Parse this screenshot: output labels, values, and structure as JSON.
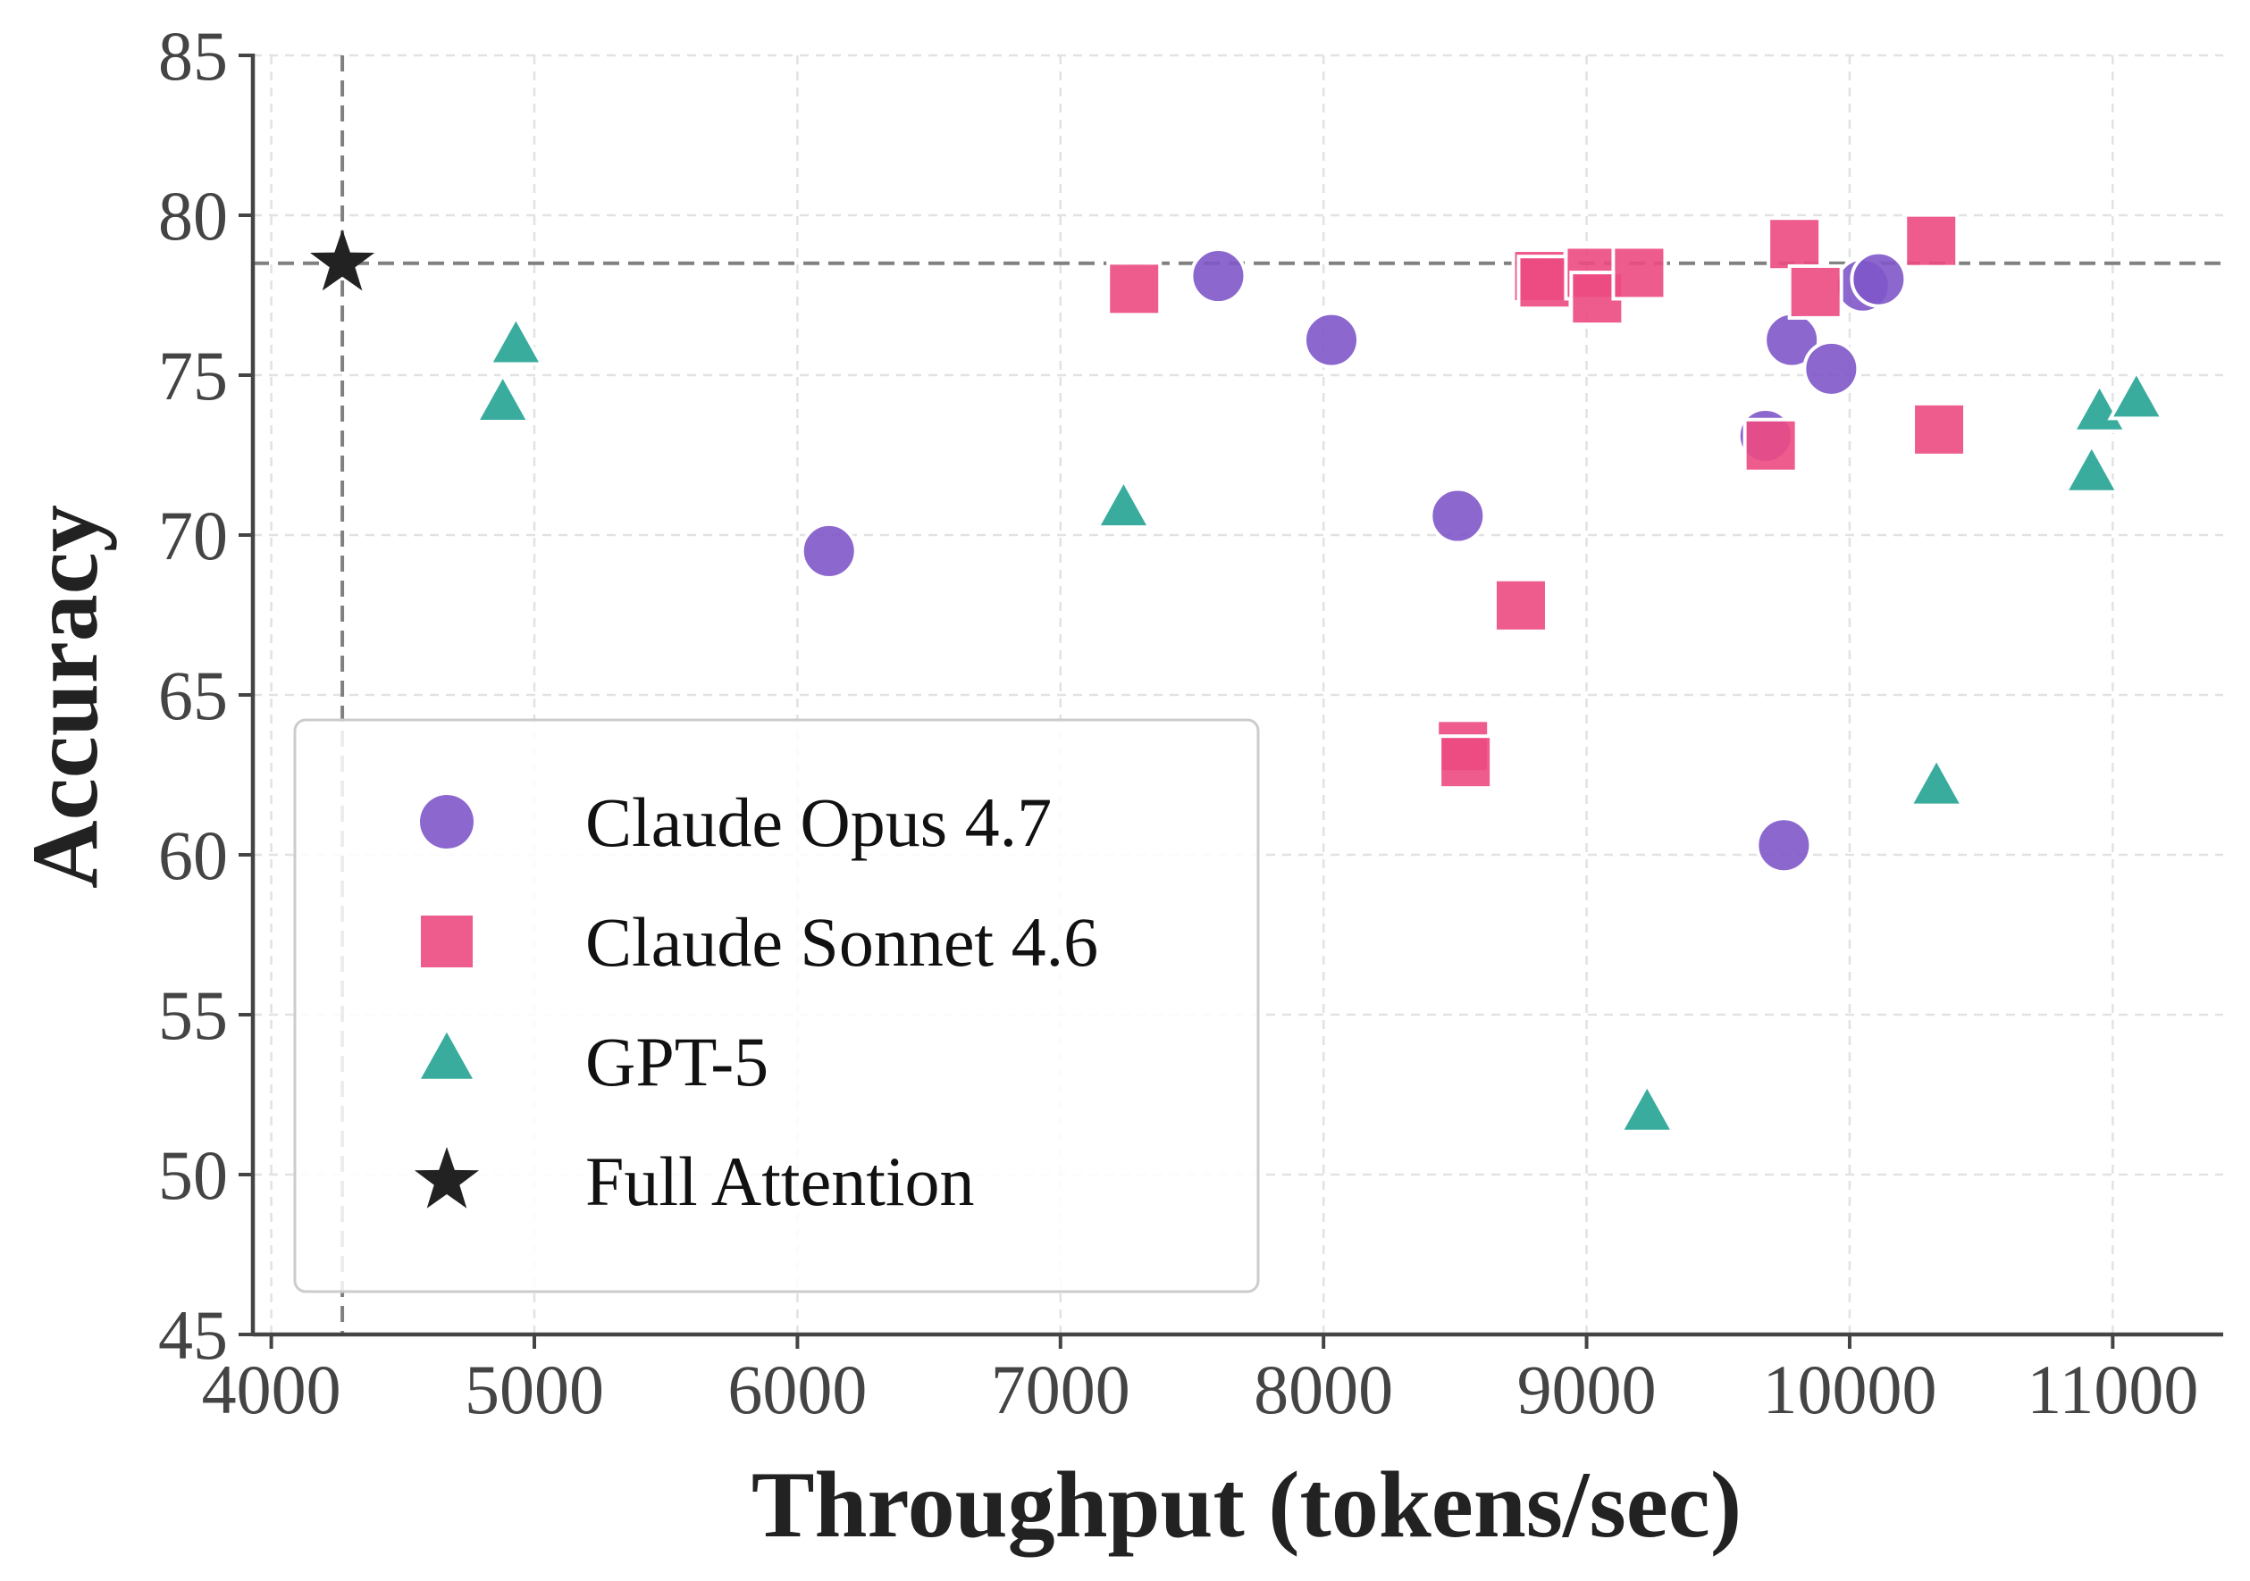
{
  "chart_data": {
    "type": "scatter",
    "title": "",
    "xlabel": "Throughput (tokens/sec)",
    "ylabel": "Accuracy",
    "xlim": [
      3930,
      11420
    ],
    "ylim": [
      45,
      85
    ],
    "xticks": [
      "4000",
      "5000",
      "6000",
      "7000",
      "8000",
      "9000",
      "10000",
      "11000"
    ],
    "yticks": [
      "45",
      "50",
      "55",
      "60",
      "65",
      "70",
      "75",
      "80",
      "85"
    ],
    "grid": true,
    "legend_position": "lower-left",
    "reference_lines": {
      "x": 4270,
      "y": 78.5
    },
    "series": [
      {
        "name": "Claude Opus 4.7",
        "marker": "circle",
        "color": "#7e57c9",
        "points": [
          [
            6120,
            69.5
          ],
          [
            7600,
            78.1
          ],
          [
            8030,
            76.1
          ],
          [
            8510,
            70.6
          ],
          [
            9680,
            73.1
          ],
          [
            9750,
            60.3
          ],
          [
            9780,
            76.1
          ],
          [
            9930,
            75.2
          ],
          [
            10050,
            77.8
          ],
          [
            10110,
            78.0
          ]
        ]
      },
      {
        "name": "Claude Sonnet 4.6",
        "marker": "square",
        "color": "#ec4a82",
        "points": [
          [
            7280,
            77.7
          ],
          [
            8530,
            63.4
          ],
          [
            8540,
            62.9
          ],
          [
            8750,
            67.8
          ],
          [
            8820,
            78.1
          ],
          [
            8840,
            77.9
          ],
          [
            9020,
            78.2
          ],
          [
            9040,
            77.4
          ],
          [
            9200,
            78.2
          ],
          [
            9700,
            72.8
          ],
          [
            9790,
            79.1
          ],
          [
            9870,
            77.6
          ],
          [
            10310,
            79.2
          ],
          [
            10340,
            73.3
          ]
        ]
      },
      {
        "name": "GPT-5",
        "marker": "triangle",
        "color": "#2ea899",
        "points": [
          [
            4880,
            74.1
          ],
          [
            4930,
            75.9
          ],
          [
            7240,
            70.8
          ],
          [
            9230,
            51.9
          ],
          [
            10330,
            62.1
          ],
          [
            10920,
            71.9
          ],
          [
            10950,
            73.8
          ],
          [
            11090,
            74.2
          ]
        ]
      },
      {
        "name": "Full Attention",
        "marker": "star",
        "color": "#222222",
        "points": [
          [
            4270,
            78.5
          ]
        ]
      }
    ]
  }
}
